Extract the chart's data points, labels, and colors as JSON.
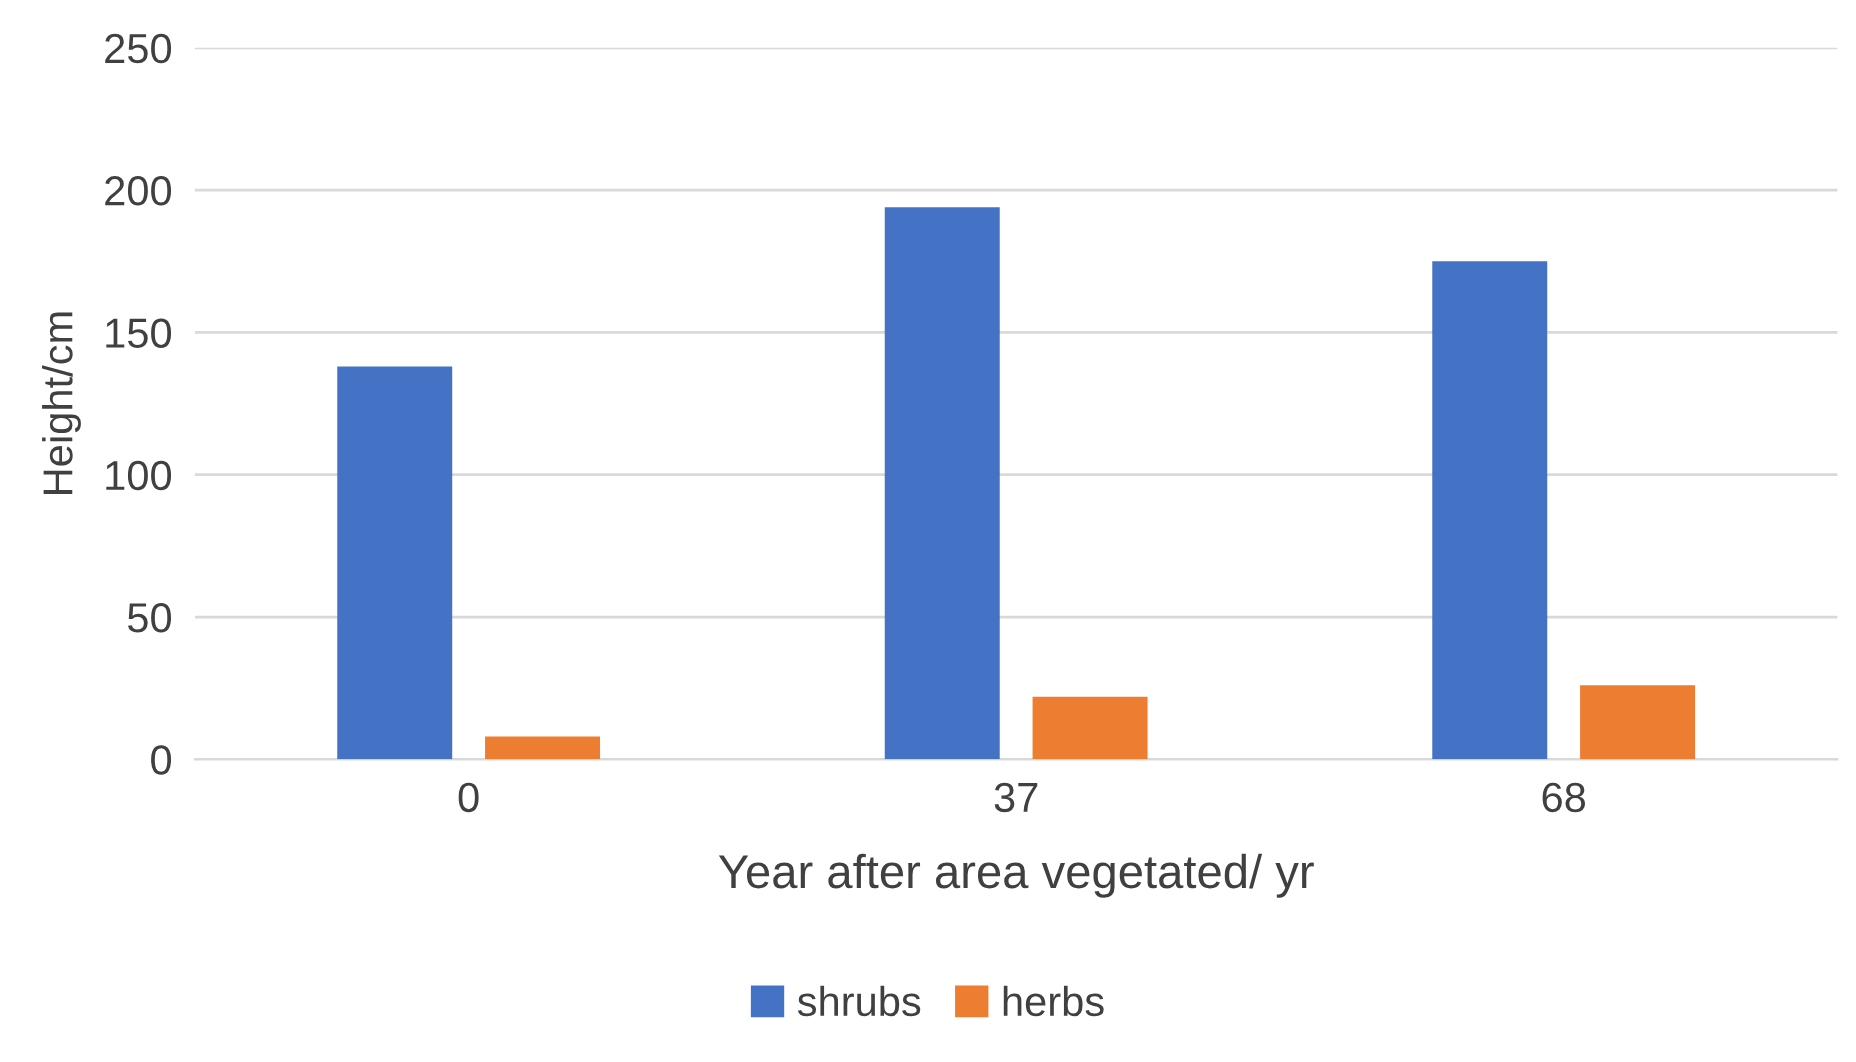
{
  "chart_data": {
    "type": "bar",
    "xlabel": "Year after area vegetated/ yr",
    "ylabel": "Height/cm",
    "categories": [
      "0",
      "37",
      "68"
    ],
    "series": [
      {
        "name": "shrubs",
        "color": "#4472c4",
        "values": [
          138,
          194,
          175
        ]
      },
      {
        "name": "herbs",
        "color": "#ed7d31",
        "values": [
          8,
          22,
          26
        ]
      }
    ],
    "ylim": [
      0,
      250
    ],
    "yticks": [
      0,
      50,
      100,
      150,
      200,
      250
    ],
    "grid": "y",
    "legend": "bottom"
  }
}
